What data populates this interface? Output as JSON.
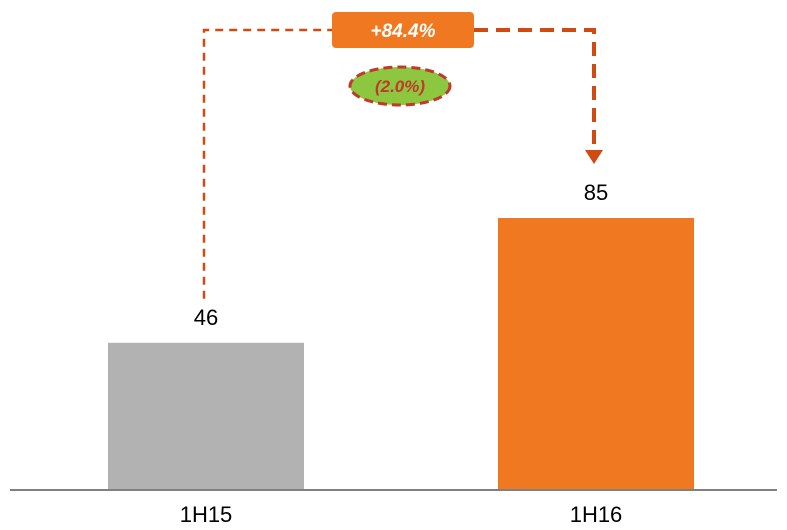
{
  "chart_data": {
    "type": "bar",
    "categories": [
      "1H15",
      "1H16"
    ],
    "values": [
      46,
      85
    ],
    "data_labels": [
      "46",
      "85"
    ],
    "ylim": [
      0,
      85
    ],
    "grid": false,
    "colors": {
      "bar_1H15": "#b2b2b2",
      "bar_1H16": "#f07820",
      "axis": "#808080",
      "connector": "#d04a12",
      "growth_badge": "#f07820",
      "sub_badge_fill": "#8dc63f",
      "sub_badge_border": "#c0392b",
      "sub_badge_text": "#c0392b"
    },
    "annotations": {
      "growth_label": "+84.4%",
      "sub_label": "(2.0%)"
    }
  }
}
